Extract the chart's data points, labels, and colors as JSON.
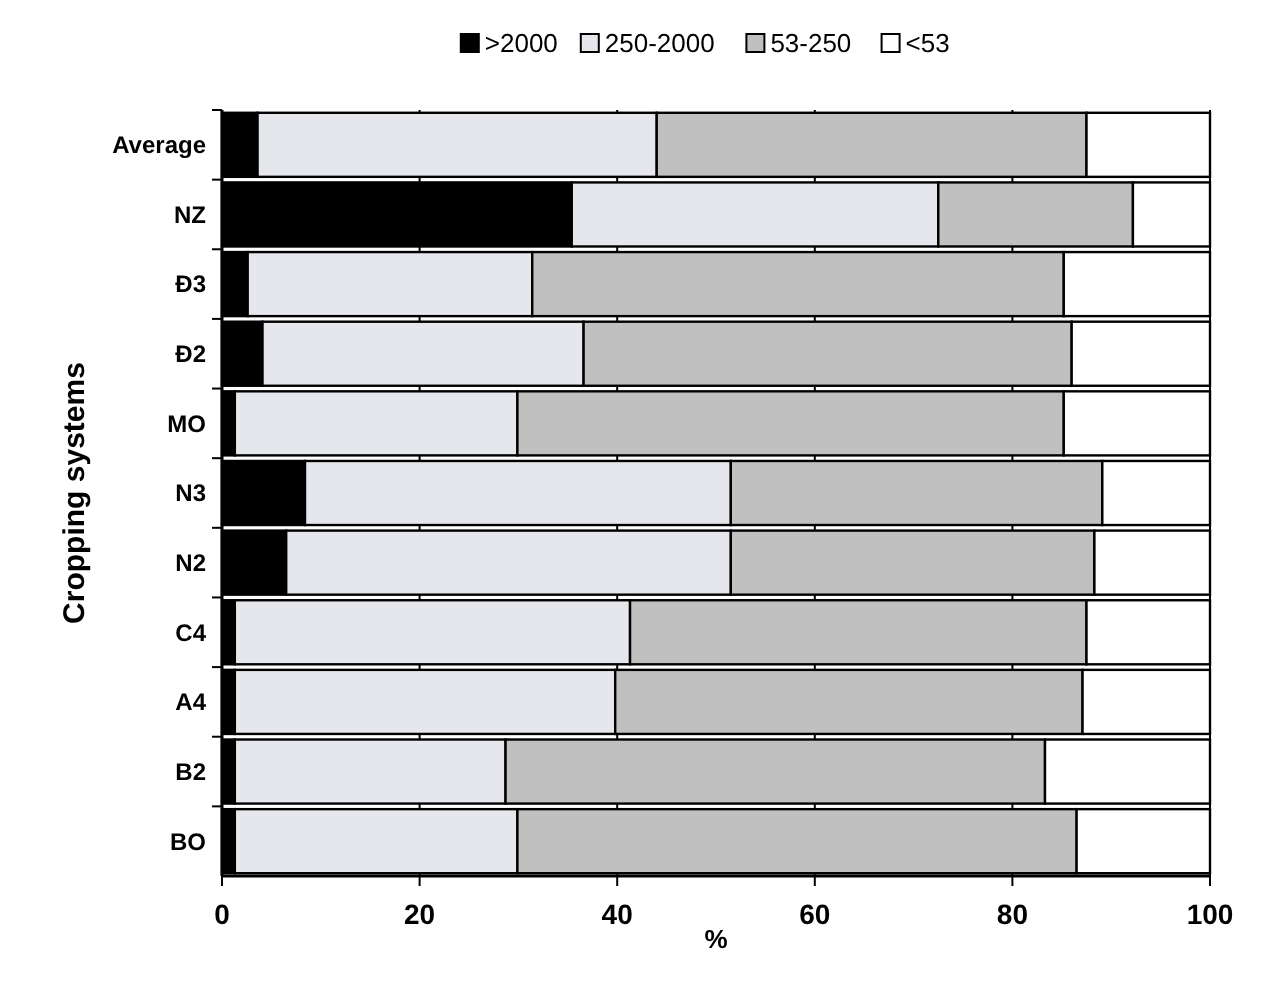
{
  "chart_data": {
    "type": "bar",
    "orientation": "horizontal",
    "stacked": true,
    "ylabel": "Cropping systems",
    "xlabel": "%",
    "categories": [
      "Average",
      "NZ",
      "Đ3",
      "Đ2",
      "MO",
      "N3",
      "N2",
      "C4",
      "A4",
      "B2",
      "BO"
    ],
    "series": [
      {
        "name": ">2000",
        "color": "#000000",
        "values": [
          3.6,
          35.4,
          2.6,
          4.1,
          1.3,
          8.4,
          6.5,
          1.3,
          1.3,
          1.3,
          1.3
        ]
      },
      {
        "name": "250-2000",
        "color": "#e6e7ec",
        "values": [
          40.4,
          37.1,
          28.8,
          32.5,
          28.6,
          43.1,
          45.0,
          40.0,
          38.5,
          27.4,
          28.6
        ]
      },
      {
        "name": "53-250",
        "color": "#c0c0c0",
        "values": [
          43.5,
          19.7,
          53.8,
          49.4,
          55.3,
          37.6,
          36.8,
          46.2,
          47.3,
          54.6,
          56.6
        ]
      },
      {
        "name": "<53",
        "color": "#ffffff",
        "values": [
          12.5,
          7.8,
          14.8,
          14.0,
          14.8,
          10.9,
          11.7,
          12.5,
          12.9,
          16.7,
          13.5
        ]
      }
    ],
    "xlim": [
      0,
      100
    ],
    "xticks": [
      0,
      20,
      40,
      60,
      80,
      100
    ],
    "grid": "x",
    "legend": "top"
  }
}
